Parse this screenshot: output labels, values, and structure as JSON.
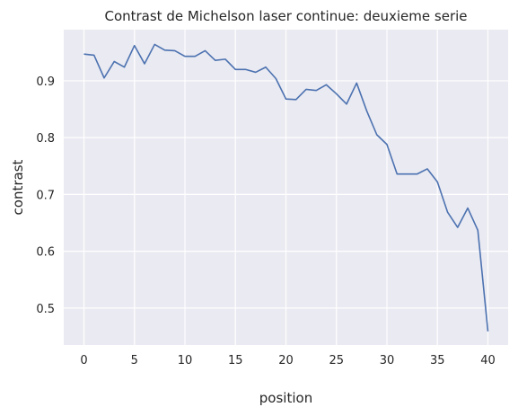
{
  "chart_data": {
    "type": "line",
    "title": "Contrast de Michelson laser continue: deuxieme serie",
    "xlabel": "position",
    "ylabel": "contrast",
    "xlim": [
      -2,
      42
    ],
    "ylim": [
      0.435,
      0.99
    ],
    "xticks": [
      0,
      5,
      10,
      15,
      20,
      25,
      30,
      35,
      40
    ],
    "yticks": [
      0.5,
      0.6,
      0.7,
      0.8,
      0.9
    ],
    "xtick_labels": [
      "0",
      "5",
      "10",
      "15",
      "20",
      "25",
      "30",
      "35",
      "40"
    ],
    "ytick_labels": [
      "0.5",
      "0.6",
      "0.7",
      "0.8",
      "0.9"
    ],
    "grid": true,
    "colors": {
      "background": "#eaeaf2",
      "grid": "#ffffff",
      "line": "#4c72b0"
    },
    "series": [
      {
        "x": [
          0,
          1,
          2,
          3,
          4,
          5,
          6,
          7,
          8,
          9,
          10,
          11,
          12,
          13,
          14,
          15,
          16,
          17,
          18,
          19,
          20,
          21,
          22,
          23,
          24,
          25,
          26,
          27,
          28,
          29,
          30,
          31,
          32,
          33,
          34,
          35,
          36,
          37,
          38,
          39,
          40
        ],
        "values": [
          0.947,
          0.945,
          0.905,
          0.934,
          0.924,
          0.962,
          0.93,
          0.964,
          0.954,
          0.953,
          0.943,
          0.943,
          0.953,
          0.936,
          0.938,
          0.92,
          0.92,
          0.915,
          0.924,
          0.904,
          0.868,
          0.867,
          0.885,
          0.883,
          0.893,
          0.877,
          0.859,
          0.896,
          0.847,
          0.805,
          0.788,
          0.736,
          0.736,
          0.736,
          0.745,
          0.722,
          0.669,
          0.642,
          0.676,
          0.637,
          0.459
        ]
      }
    ]
  }
}
